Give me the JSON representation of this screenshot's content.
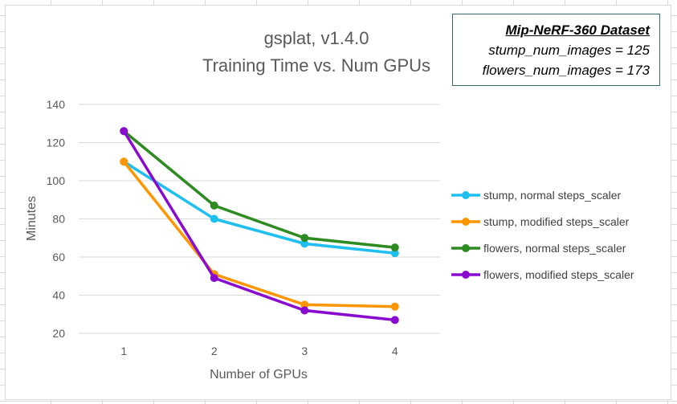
{
  "chart_data": {
    "type": "line",
    "title": "gsplat, v1.4.0",
    "subtitle": "Training Time vs. Num GPUs",
    "xlabel": "Number of GPUs",
    "ylabel": "Minutes",
    "x": [
      1,
      2,
      3,
      4
    ],
    "x_tick_labels": [
      "1",
      "2",
      "3",
      "4"
    ],
    "ylim": [
      20,
      140
    ],
    "y_ticks": [
      20,
      40,
      60,
      80,
      100,
      120,
      140
    ],
    "grid": "horizontal",
    "legend_position": "right",
    "series": [
      {
        "name": "stump, normal steps_scaler",
        "color": "#1fbff0",
        "values": [
          110,
          80,
          67,
          62
        ]
      },
      {
        "name": "stump, modified steps_scaler",
        "color": "#ff9500",
        "values": [
          110,
          51,
          35,
          34
        ]
      },
      {
        "name": "flowers, normal steps_scaler",
        "color": "#2e8b22",
        "values": [
          126,
          87,
          70,
          65
        ]
      },
      {
        "name": "flowers, modified steps_scaler",
        "color": "#8a0bd0",
        "values": [
          126,
          49,
          32,
          27
        ]
      }
    ]
  },
  "info_box": {
    "title": "Mip-NeRF-360 Dataset",
    "lines": [
      "stump_num_images = 125",
      "flowers_num_images = 173"
    ]
  }
}
